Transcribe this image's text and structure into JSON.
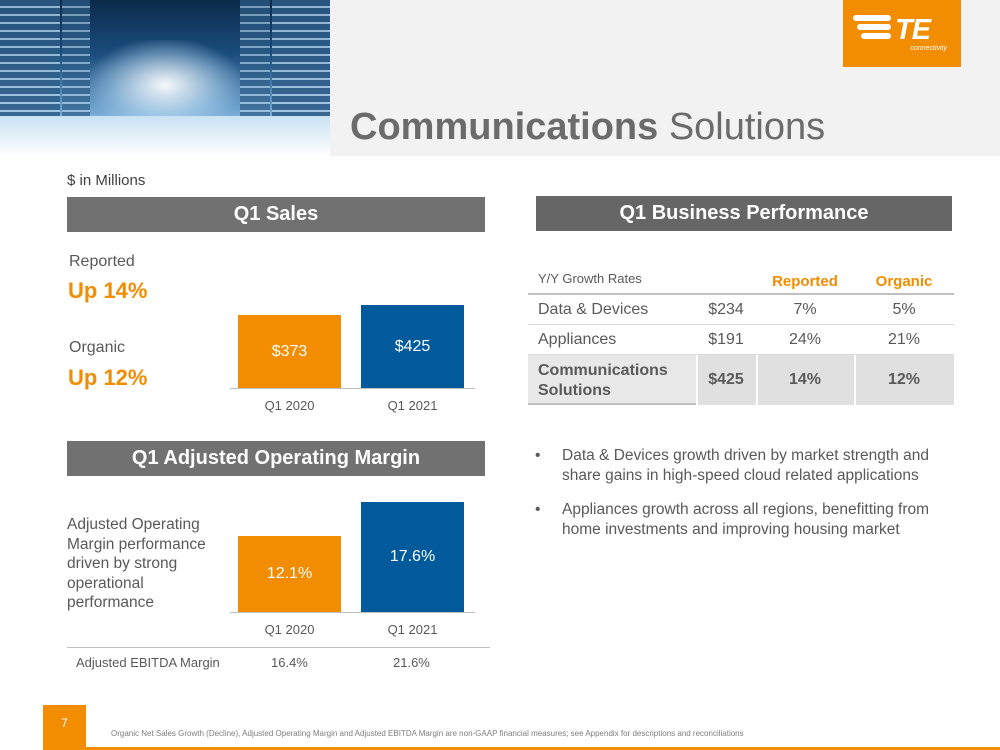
{
  "header": {
    "title_bold": "Communications",
    "title_rest": "Solutions",
    "logo_mark": "TE",
    "logo_sub": "connectivity",
    "brand_color": "#f28c00"
  },
  "units": "$ in Millions",
  "sales": {
    "section_title": "Q1 Sales",
    "reported_label": "Reported",
    "reported_value": "Up 14%",
    "organic_label": "Organic",
    "organic_value": "Up 12%"
  },
  "margin": {
    "section_title": "Q1 Adjusted Operating Margin",
    "description": "Adjusted Operating Margin performance driven by strong operational performance",
    "ebitda": {
      "label": "Adjusted EBITDA Margin",
      "q1_2020": "16.4%",
      "q1_2021": "21.6%"
    }
  },
  "performance": {
    "section_title": "Q1 Business Performance",
    "header": {
      "yy_label": "Y/Y Growth Rates",
      "reported": "Reported",
      "organic": "Organic"
    },
    "rows": [
      {
        "name": "Data & Devices",
        "amount": "$234",
        "reported": "7%",
        "organic": "5%"
      },
      {
        "name": "Appliances",
        "amount": "$191",
        "reported": "24%",
        "organic": "21%"
      }
    ],
    "total": {
      "name_line1": "Communications",
      "name_line2": "Solutions",
      "amount": "$425",
      "reported": "14%",
      "organic": "12%"
    }
  },
  "bullets": {
    "marker": "•",
    "items": [
      "Data & Devices growth driven by market strength and share gains in high-speed cloud related applications",
      "Appliances growth across all regions, benefitting from home investments and improving housing market"
    ]
  },
  "chart_data": [
    {
      "type": "bar",
      "categories": [
        "Q1 2020",
        "Q1 2021"
      ],
      "values": [
        373,
        425
      ],
      "value_labels": [
        "$373",
        "$425"
      ],
      "colors": [
        "#f28c00",
        "#005a9c"
      ]
    },
    {
      "type": "bar",
      "categories": [
        "Q1 2020",
        "Q1 2021"
      ],
      "values": [
        12.1,
        17.6
      ],
      "value_labels": [
        "12.1%",
        "17.6%"
      ],
      "colors": [
        "#f28c00",
        "#005a9c"
      ]
    }
  ],
  "footer": {
    "page_number": "7",
    "footnote": "Organic Net Sales Growth (Decline), Adjusted Operating Margin and Adjusted EBITDA Margin are non-GAAP financial measures; see Appendix for descriptions and reconciliations"
  }
}
